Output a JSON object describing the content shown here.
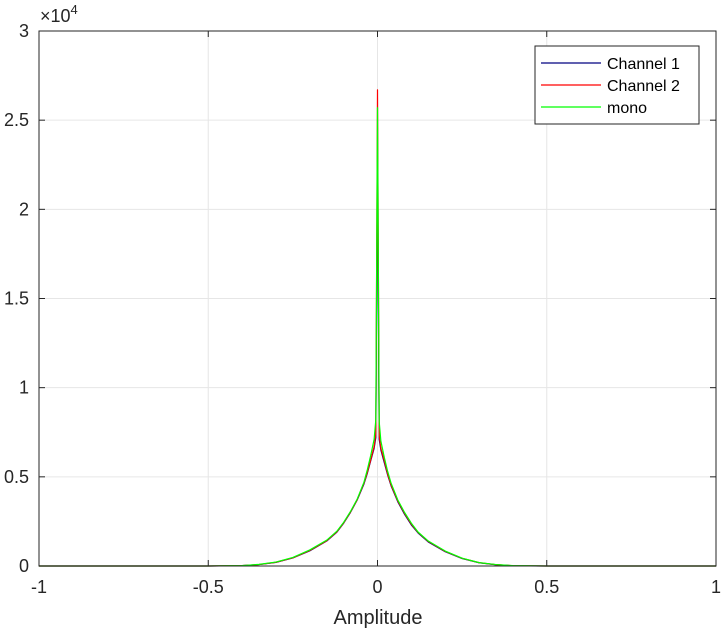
{
  "chart_data": {
    "type": "line",
    "title": "",
    "xlabel": "Amplitude",
    "ylabel": "",
    "xlim": [
      -1,
      1
    ],
    "ylim": [
      0,
      30000
    ],
    "y_exponent_label": "×10",
    "y_exponent_power": "4",
    "x_ticks": [
      -1,
      -0.5,
      0,
      0.5,
      1
    ],
    "x_tick_labels": [
      "-1",
      "-0.5",
      "0",
      "0.5",
      "1"
    ],
    "y_ticks": [
      0,
      5000,
      10000,
      15000,
      20000,
      25000,
      30000
    ],
    "y_tick_labels": [
      "0",
      "0.5",
      "1",
      "1.5",
      "2",
      "2.5",
      "3"
    ],
    "grid": true,
    "legend_position": "top-right",
    "series": [
      {
        "name": "Channel 1",
        "color": "#000080",
        "x": [
          -1,
          -0.5,
          -0.4,
          -0.35,
          -0.3,
          -0.25,
          -0.2,
          -0.15,
          -0.12,
          -0.1,
          -0.08,
          -0.06,
          -0.04,
          -0.03,
          -0.02,
          -0.01,
          -0.005,
          0,
          0.005,
          0.01,
          0.02,
          0.03,
          0.04,
          0.06,
          0.08,
          0.1,
          0.12,
          0.15,
          0.2,
          0.25,
          0.3,
          0.35,
          0.4,
          0.5,
          1
        ],
        "y": [
          0,
          0,
          20,
          80,
          200,
          450,
          850,
          1400,
          1900,
          2400,
          3000,
          3700,
          4600,
          5200,
          5900,
          6600,
          7200,
          23000,
          7100,
          6500,
          5800,
          5100,
          4500,
          3600,
          2900,
          2300,
          1850,
          1350,
          800,
          420,
          180,
          70,
          15,
          0,
          0
        ]
      },
      {
        "name": "Channel 2",
        "color": "#ff0000",
        "x": [
          -1,
          -0.5,
          -0.4,
          -0.35,
          -0.3,
          -0.25,
          -0.2,
          -0.15,
          -0.12,
          -0.1,
          -0.08,
          -0.06,
          -0.04,
          -0.03,
          -0.02,
          -0.01,
          -0.005,
          0,
          0.005,
          0.01,
          0.02,
          0.03,
          0.04,
          0.06,
          0.08,
          0.1,
          0.12,
          0.15,
          0.2,
          0.25,
          0.3,
          0.35,
          0.4,
          0.5,
          1
        ],
        "y": [
          0,
          0,
          20,
          80,
          210,
          460,
          870,
          1420,
          1920,
          2420,
          3020,
          3720,
          4650,
          5250,
          5950,
          6700,
          7400,
          26700,
          7300,
          6600,
          5900,
          5150,
          4550,
          3650,
          2950,
          2350,
          1880,
          1380,
          820,
          430,
          190,
          75,
          18,
          0,
          0
        ]
      },
      {
        "name": "mono",
        "color": "#00ff00",
        "x": [
          -1,
          -0.5,
          -0.4,
          -0.35,
          -0.3,
          -0.25,
          -0.2,
          -0.15,
          -0.12,
          -0.1,
          -0.08,
          -0.06,
          -0.04,
          -0.03,
          -0.02,
          -0.01,
          -0.005,
          0,
          0.005,
          0.01,
          0.02,
          0.03,
          0.04,
          0.06,
          0.08,
          0.1,
          0.12,
          0.15,
          0.2,
          0.25,
          0.3,
          0.35,
          0.4,
          0.5,
          1
        ],
        "y": [
          0,
          0,
          25,
          90,
          220,
          480,
          900,
          1450,
          1950,
          2450,
          3050,
          3750,
          4700,
          5400,
          6200,
          7100,
          8200,
          25700,
          8100,
          7000,
          6100,
          5300,
          4650,
          3700,
          3000,
          2400,
          1900,
          1400,
          840,
          440,
          190,
          80,
          20,
          0,
          0
        ]
      }
    ]
  }
}
